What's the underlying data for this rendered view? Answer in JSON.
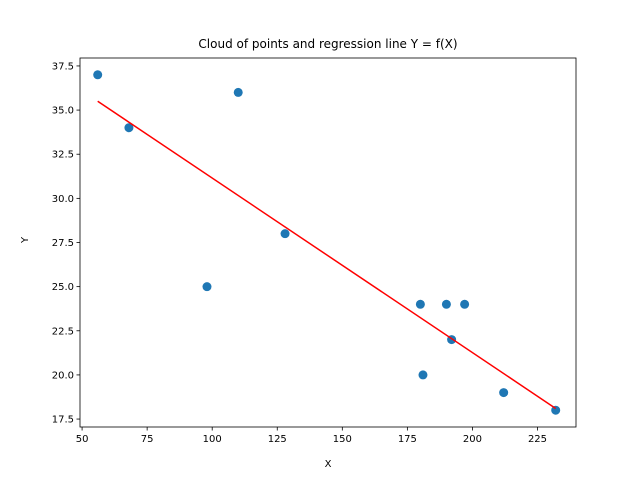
{
  "chart_data": {
    "type": "scatter",
    "title": "Cloud of points and regression line Y = f(X)",
    "xlabel": "X",
    "ylabel": "Y",
    "xlim": [
      49.2,
      239.8
    ],
    "ylim": [
      17.05,
      37.95
    ],
    "x_ticks": [
      50,
      75,
      100,
      125,
      150,
      175,
      200,
      225
    ],
    "x_tick_labels": [
      "50",
      "75",
      "100",
      "125",
      "150",
      "175",
      "200",
      "225"
    ],
    "y_ticks": [
      17.5,
      20.0,
      22.5,
      25.0,
      27.5,
      30.0,
      32.5,
      35.0,
      37.5
    ],
    "y_tick_labels": [
      "17.5",
      "20.0",
      "22.5",
      "25.0",
      "27.5",
      "30.0",
      "32.5",
      "35.0",
      "37.5"
    ],
    "grid": false,
    "series": [
      {
        "type": "scatter",
        "color": "#1f77b4",
        "points": [
          {
            "x": 56,
            "y": 37
          },
          {
            "x": 68,
            "y": 34
          },
          {
            "x": 98,
            "y": 25
          },
          {
            "x": 110,
            "y": 36
          },
          {
            "x": 128,
            "y": 28
          },
          {
            "x": 180,
            "y": 24
          },
          {
            "x": 181,
            "y": 20
          },
          {
            "x": 190,
            "y": 24
          },
          {
            "x": 192,
            "y": 22
          },
          {
            "x": 197,
            "y": 24
          },
          {
            "x": 212,
            "y": 19
          },
          {
            "x": 232,
            "y": 18
          }
        ]
      },
      {
        "type": "line",
        "color": "#ff0000",
        "points": [
          {
            "x": 56,
            "y": 35.5
          },
          {
            "x": 232,
            "y": 18.1
          }
        ]
      }
    ]
  }
}
